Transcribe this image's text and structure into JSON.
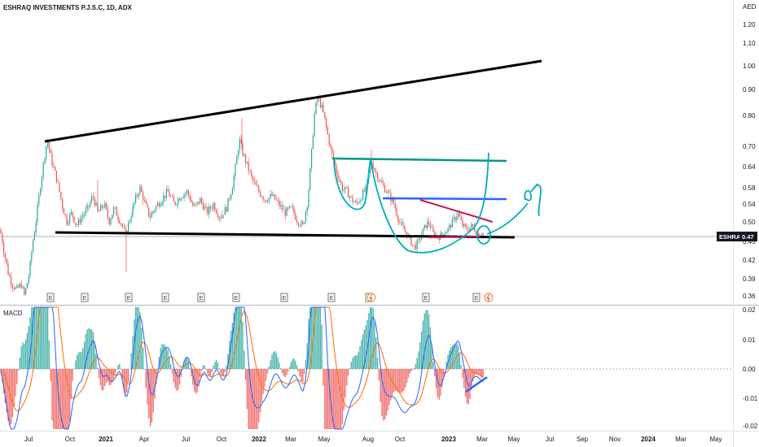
{
  "header": {
    "title": "ESHRAQ INVESTMENTS P.J.S.C, 1D, ADX",
    "currency": "AED",
    "ticker_label": "ESHRAQ",
    "last_price_label": "0.47"
  },
  "macd_panel": {
    "label": "MACD"
  },
  "colors": {
    "up": "#26a69a",
    "down": "#ef5350",
    "macd_line": "#2962ff",
    "signal_line": "#ff6d00",
    "hist_pos": "#26a69a",
    "hist_neg": "#ef5350",
    "drawing_black": "#000000",
    "drawing_teal": "#009688",
    "drawing_blue": "#2962ff",
    "drawing_red": "#c2185b",
    "drawing_cyan": "#00acc1"
  },
  "icons": {
    "earnings": "earnings-marker-icon",
    "dividend": "dividend-marker-icon"
  },
  "events": {
    "earnings_label": "E",
    "earnings_count": 12,
    "dividend_positions": [
      9,
      12
    ]
  },
  "chart_data": [
    {
      "type": "candlestick",
      "title": "ESHRAQ INVESTMENTS P.J.S.C, 1D, ADX",
      "ylabel": "AED",
      "y_scale": "log",
      "ylim": [
        0.34,
        1.28
      ],
      "y_ticks": [
        "1.20",
        "1.10",
        "1.00",
        "0.90",
        "0.80",
        "0.70",
        "0.64",
        "0.58",
        "0.54",
        "0.50",
        "0.45",
        "0.42",
        "0.39",
        "0.36"
      ],
      "x_ticks": [
        "Jul",
        "Oct",
        "2021",
        "Apr",
        "Jul",
        "Oct",
        "2022",
        "Mar",
        "May",
        "Aug",
        "Oct",
        "2023",
        "Mar",
        "May",
        "Jul",
        "Sep",
        "Nov",
        "2024",
        "Mar",
        "May"
      ],
      "x_ticks_bold": [
        "2021",
        "2022",
        "2023",
        "2024"
      ],
      "last_price": 0.47,
      "price_path": [
        [
          0,
          0.48
        ],
        [
          4,
          0.44
        ],
        [
          10,
          0.4
        ],
        [
          15,
          0.38
        ],
        [
          20,
          0.37
        ],
        [
          26,
          0.38
        ],
        [
          30,
          0.36
        ],
        [
          36,
          0.4
        ],
        [
          42,
          0.47
        ],
        [
          48,
          0.56
        ],
        [
          54,
          0.66
        ],
        [
          58,
          0.72
        ],
        [
          63,
          0.66
        ],
        [
          70,
          0.6
        ],
        [
          76,
          0.54
        ],
        [
          82,
          0.5
        ],
        [
          88,
          0.52
        ],
        [
          94,
          0.49
        ],
        [
          100,
          0.51
        ],
        [
          108,
          0.53
        ],
        [
          114,
          0.56
        ],
        [
          120,
          0.52
        ],
        [
          128,
          0.54
        ],
        [
          134,
          0.5
        ],
        [
          140,
          0.53
        ],
        [
          148,
          0.5
        ],
        [
          154,
          0.47
        ],
        [
          160,
          0.51
        ],
        [
          166,
          0.55
        ],
        [
          172,
          0.58
        ],
        [
          178,
          0.54
        ],
        [
          184,
          0.51
        ],
        [
          190,
          0.53
        ],
        [
          198,
          0.55
        ],
        [
          206,
          0.57
        ],
        [
          214,
          0.54
        ],
        [
          222,
          0.56
        ],
        [
          230,
          0.57
        ],
        [
          238,
          0.53
        ],
        [
          246,
          0.55
        ],
        [
          254,
          0.52
        ],
        [
          262,
          0.54
        ],
        [
          270,
          0.51
        ],
        [
          278,
          0.53
        ],
        [
          285,
          0.58
        ],
        [
          290,
          0.65
        ],
        [
          294,
          0.72
        ],
        [
          298,
          0.68
        ],
        [
          304,
          0.64
        ],
        [
          310,
          0.6
        ],
        [
          318,
          0.57
        ],
        [
          326,
          0.55
        ],
        [
          334,
          0.56
        ],
        [
          342,
          0.54
        ],
        [
          350,
          0.52
        ],
        [
          358,
          0.53
        ],
        [
          366,
          0.5
        ],
        [
          372,
          0.49
        ],
        [
          378,
          0.55
        ],
        [
          382,
          0.66
        ],
        [
          386,
          0.8
        ],
        [
          390,
          0.87
        ],
        [
          396,
          0.82
        ],
        [
          402,
          0.74
        ],
        [
          408,
          0.67
        ],
        [
          414,
          0.62
        ],
        [
          420,
          0.58
        ],
        [
          426,
          0.57
        ],
        [
          432,
          0.55
        ],
        [
          438,
          0.54
        ],
        [
          444,
          0.56
        ],
        [
          450,
          0.58
        ],
        [
          456,
          0.66
        ],
        [
          460,
          0.63
        ],
        [
          466,
          0.6
        ],
        [
          472,
          0.58
        ],
        [
          478,
          0.56
        ],
        [
          484,
          0.54
        ],
        [
          490,
          0.5
        ],
        [
          496,
          0.48
        ],
        [
          502,
          0.46
        ],
        [
          508,
          0.44
        ],
        [
          514,
          0.45
        ],
        [
          520,
          0.48
        ],
        [
          526,
          0.5
        ],
        [
          532,
          0.47
        ],
        [
          538,
          0.46
        ],
        [
          544,
          0.47
        ],
        [
          550,
          0.48
        ],
        [
          556,
          0.5
        ],
        [
          562,
          0.52
        ],
        [
          568,
          0.49
        ],
        [
          574,
          0.48
        ],
        [
          580,
          0.49
        ],
        [
          586,
          0.47
        ],
        [
          592,
          0.47
        ]
      ]
    },
    {
      "type": "line",
      "title": "MACD",
      "ylim": [
        -0.02,
        0.02
      ],
      "y_ticks": [
        "0.02",
        "0.01",
        "0.00",
        "-0.01",
        "-0.02"
      ],
      "zero_level": 0.0
    }
  ]
}
